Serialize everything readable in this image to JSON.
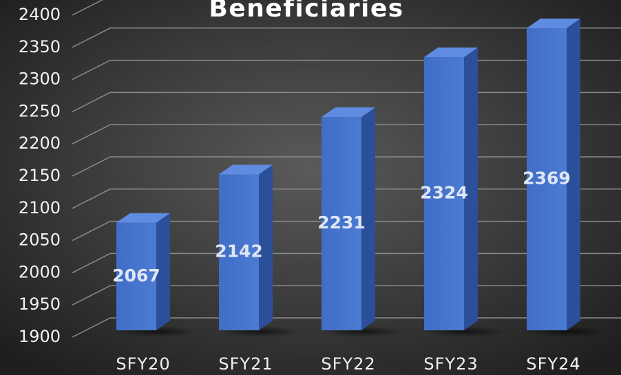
{
  "chart_data": {
    "type": "bar",
    "title": "Beneficiaries",
    "categories": [
      "SFY20",
      "SFY21",
      "SFY22",
      "SFY23",
      "SFY24"
    ],
    "values": [
      2067,
      2142,
      2231,
      2324,
      2369
    ],
    "color": "#4472c4",
    "ylim": [
      1900,
      2400
    ],
    "yticks": [
      1900,
      1950,
      2000,
      2050,
      2100,
      2150,
      2200,
      2250,
      2300,
      2350,
      2400
    ],
    "grid": true
  }
}
